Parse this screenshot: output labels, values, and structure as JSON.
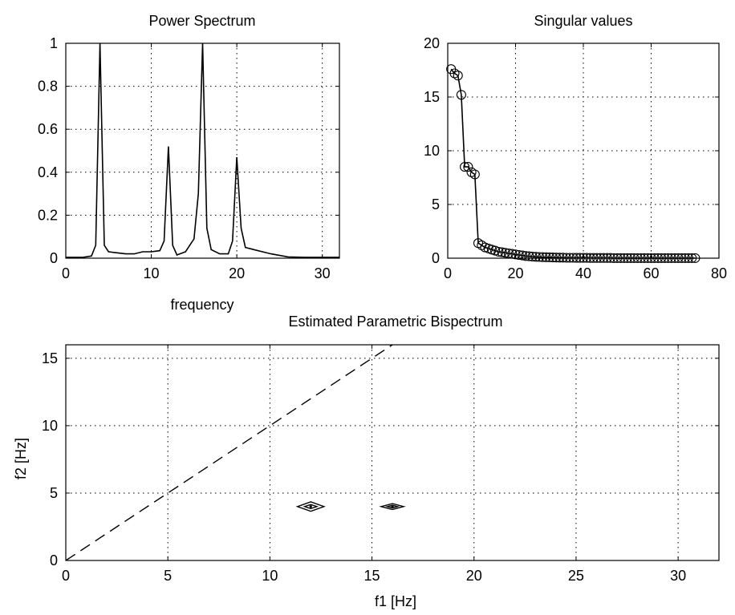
{
  "chart_data": [
    {
      "type": "line",
      "title": "Power Spectrum",
      "xlabel": "frequency",
      "ylabel": "",
      "xlim": [
        0,
        32
      ],
      "ylim": [
        0,
        1
      ],
      "xticks": [
        0,
        10,
        20,
        30
      ],
      "yticks": [
        0,
        0.2,
        0.4,
        0.6,
        0.8,
        1
      ],
      "grid": true,
      "series": [
        {
          "x": [
            0,
            2,
            3,
            3.5,
            4,
            4.5,
            5,
            6,
            7,
            8,
            9,
            10,
            11,
            11.5,
            12,
            12.5,
            13,
            14,
            15,
            15.5,
            16,
            16.5,
            17,
            18,
            19,
            19.5,
            20,
            20.5,
            21,
            22,
            23,
            24,
            26,
            28,
            30,
            32
          ],
          "y": [
            0.004,
            0.004,
            0.01,
            0.06,
            1.0,
            0.06,
            0.03,
            0.025,
            0.02,
            0.02,
            0.03,
            0.03,
            0.035,
            0.08,
            0.52,
            0.06,
            0.015,
            0.03,
            0.09,
            0.3,
            1.0,
            0.14,
            0.04,
            0.02,
            0.02,
            0.08,
            0.47,
            0.14,
            0.05,
            0.04,
            0.03,
            0.02,
            0.006,
            0.004,
            0.004,
            0.004
          ]
        }
      ]
    },
    {
      "type": "line",
      "title": "Singular values",
      "xlabel": "",
      "ylabel": "",
      "xlim": [
        0,
        80
      ],
      "ylim": [
        0,
        20
      ],
      "xticks": [
        0,
        20,
        40,
        60,
        80
      ],
      "yticks": [
        0,
        5,
        10,
        15,
        20
      ],
      "grid": true,
      "marker": "circle",
      "series": [
        {
          "x": [
            1,
            2,
            3,
            4,
            5,
            6,
            7,
            8,
            9,
            10,
            11,
            12,
            13,
            14,
            15,
            16,
            17,
            18,
            19,
            20,
            21,
            22,
            23,
            24,
            25,
            26,
            27,
            28,
            29,
            30,
            31,
            32,
            33,
            34,
            35,
            36,
            37,
            38,
            39,
            40,
            41,
            42,
            43,
            44,
            45,
            46,
            47,
            48,
            49,
            50,
            51,
            52,
            53,
            54,
            55,
            56,
            57,
            58,
            59,
            60,
            61,
            62,
            63,
            64,
            65,
            66,
            67,
            68,
            69,
            70,
            71,
            72,
            73
          ],
          "y": [
            17.6,
            17.2,
            17.0,
            15.2,
            8.5,
            8.5,
            8.0,
            7.8,
            1.4,
            1.2,
            1.0,
            0.9,
            0.8,
            0.7,
            0.6,
            0.55,
            0.5,
            0.45,
            0.4,
            0.35,
            0.3,
            0.25,
            0.2,
            0.18,
            0.15,
            0.13,
            0.11,
            0.1,
            0.09,
            0.08,
            0.07,
            0.06,
            0.05,
            0.05,
            0.04,
            0.04,
            0.04,
            0.03,
            0.03,
            0.03,
            0.03,
            0.02,
            0.02,
            0.02,
            0.02,
            0.02,
            0.02,
            0.02,
            0.01,
            0.01,
            0.01,
            0.01,
            0.01,
            0.01,
            0.01,
            0.01,
            0.01,
            0.01,
            0.01,
            0.01,
            0.01,
            0.01,
            0.01,
            0.01,
            0.01,
            0.01,
            0.01,
            0.01,
            0.01,
            0.01,
            0.01,
            0.01,
            0.01
          ]
        }
      ]
    },
    {
      "type": "contour",
      "title": "Estimated Parametric Bispectrum",
      "xlabel": "f1 [Hz]",
      "ylabel": "f2 [Hz]",
      "xlim": [
        0,
        32
      ],
      "ylim": [
        0,
        16
      ],
      "xticks": [
        0,
        5,
        10,
        15,
        20,
        25,
        30
      ],
      "yticks": [
        0,
        5,
        10,
        15
      ],
      "grid": true,
      "diagonal": {
        "x": [
          0,
          16
        ],
        "y": [
          0,
          16
        ]
      },
      "peaks": [
        {
          "x": 12,
          "y": 4,
          "levels": [
            [
              0.65,
              0.35
            ],
            [
              0.3,
              0.15
            ]
          ]
        },
        {
          "x": 16,
          "y": 4,
          "levels": [
            [
              0.55,
              0.22
            ],
            [
              0.25,
              0.1
            ]
          ]
        }
      ]
    }
  ]
}
